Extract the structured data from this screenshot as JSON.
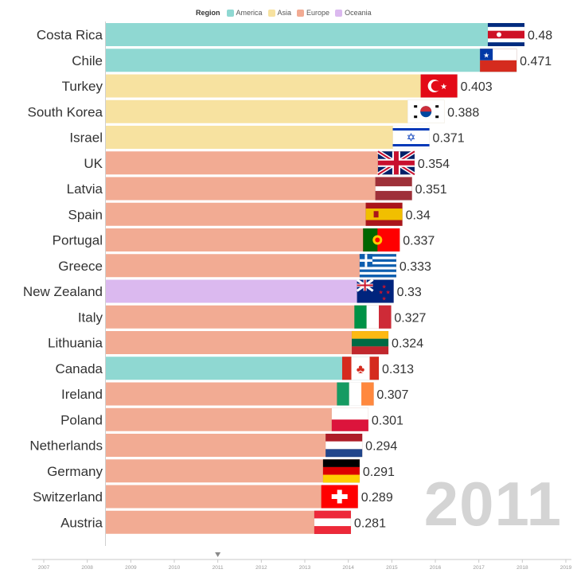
{
  "legend": {
    "title": "Region",
    "items": [
      {
        "label": "America",
        "color": "#8fd8d2"
      },
      {
        "label": "Asia",
        "color": "#f7e2a0"
      },
      {
        "label": "Europe",
        "color": "#f2ab93"
      },
      {
        "label": "Oceania",
        "color": "#dbb9ef"
      }
    ]
  },
  "year_label": "2011",
  "chart_data": {
    "type": "bar",
    "orientation": "horizontal",
    "title": "",
    "xlabel": "",
    "ylabel": "",
    "xlim": [
      0,
      0.48
    ],
    "grid": false,
    "legend_position": "top",
    "categories": [
      "Costa Rica",
      "Chile",
      "Turkey",
      "South Korea",
      "Israel",
      "UK",
      "Latvia",
      "Spain",
      "Portugal",
      "Greece",
      "New Zealand",
      "Italy",
      "Lithuania",
      "Canada",
      "Ireland",
      "Poland",
      "Netherlands",
      "Germany",
      "Switzerland",
      "Austria"
    ],
    "values": [
      0.48,
      0.471,
      0.403,
      0.388,
      0.371,
      0.354,
      0.351,
      0.34,
      0.337,
      0.333,
      0.33,
      0.327,
      0.324,
      0.313,
      0.307,
      0.301,
      0.294,
      0.291,
      0.289,
      0.281
    ],
    "value_labels": [
      "0.48",
      "0.471",
      "0.403",
      "0.388",
      "0.371",
      "0.354",
      "0.351",
      "0.34",
      "0.337",
      "0.333",
      "0.33",
      "0.327",
      "0.324",
      "0.313",
      "0.307",
      "0.301",
      "0.294",
      "0.291",
      "0.289",
      "0.281"
    ],
    "regions": [
      "America",
      "America",
      "Asia",
      "Asia",
      "Asia",
      "Europe",
      "Europe",
      "Europe",
      "Europe",
      "Europe",
      "Oceania",
      "Europe",
      "Europe",
      "America",
      "Europe",
      "Europe",
      "Europe",
      "Europe",
      "Europe",
      "Europe"
    ],
    "flags": [
      "costa-rica",
      "chile",
      "turkey",
      "south-korea",
      "israel",
      "uk",
      "latvia",
      "spain",
      "portugal",
      "greece",
      "new-zealand",
      "italy",
      "lithuania",
      "canada",
      "ireland",
      "poland",
      "netherlands",
      "germany",
      "switzerland",
      "austria"
    ],
    "timeline": {
      "ticks": [
        "2007",
        "2008",
        "2009",
        "2010",
        "2011",
        "2012",
        "2013",
        "2014",
        "2015",
        "2016",
        "2017",
        "2018",
        "2019"
      ],
      "current": "2011"
    }
  }
}
